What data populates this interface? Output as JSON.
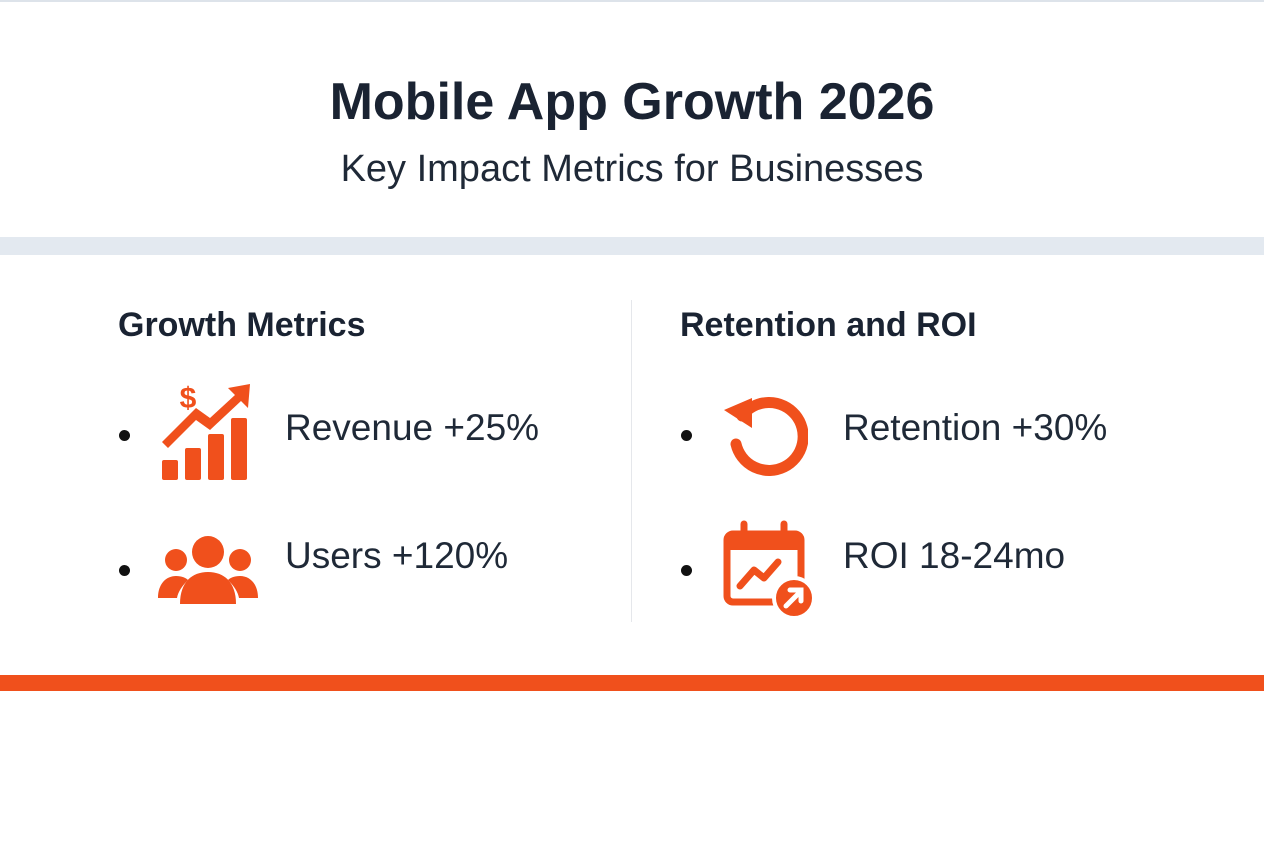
{
  "header": {
    "title": "Mobile App Growth 2026",
    "subtitle": "Key Impact Metrics for Businesses"
  },
  "sections": [
    {
      "heading": "Growth Metrics",
      "items": [
        "Revenue +25%",
        "Users +120%"
      ]
    },
    {
      "heading": "Retention and ROI",
      "items": [
        "Retention +30%",
        "ROI 18-24mo"
      ]
    }
  ]
}
